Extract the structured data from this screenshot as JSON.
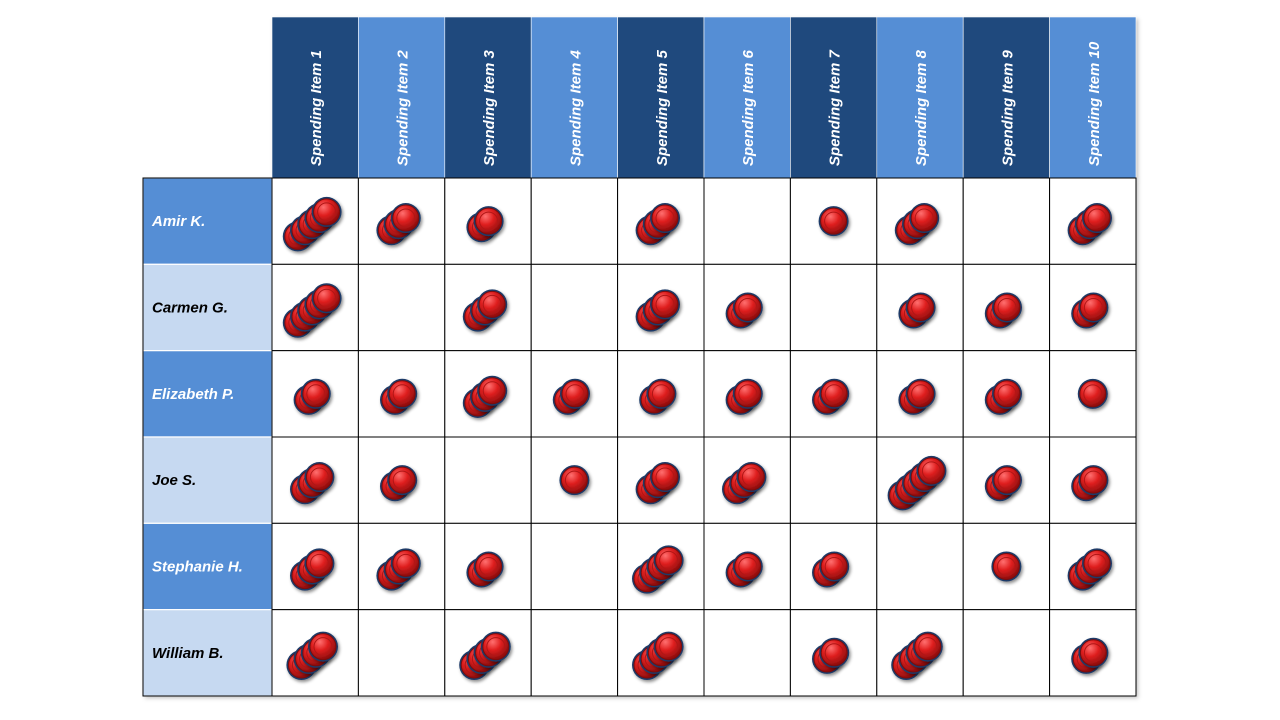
{
  "chart_data": {
    "type": "table",
    "title": "",
    "columns": [
      "Spending Item 1",
      "Spending Item 2",
      "Spending Item 3",
      "Spending Item 4",
      "Spending Item 5",
      "Spending Item 6",
      "Spending Item 7",
      "Spending Item 8",
      "Spending Item 9",
      "Spending Item 10"
    ],
    "rows": [
      "Amir K.",
      "Carmen G.",
      "Elizabeth P.",
      "Joe S.",
      "Stephanie H.",
      "William B."
    ],
    "values": [
      [
        5,
        3,
        2,
        0,
        3,
        0,
        1,
        3,
        0,
        3
      ],
      [
        5,
        0,
        3,
        0,
        3,
        2,
        0,
        2,
        2,
        2
      ],
      [
        2,
        2,
        3,
        2,
        2,
        2,
        2,
        2,
        2,
        1
      ],
      [
        3,
        2,
        0,
        1,
        3,
        3,
        0,
        5,
        2,
        2
      ],
      [
        3,
        3,
        2,
        0,
        4,
        2,
        2,
        0,
        1,
        3
      ],
      [
        4,
        0,
        4,
        0,
        4,
        0,
        2,
        4,
        0,
        2
      ]
    ],
    "colors": {
      "header_dark": "#1F497D",
      "header_light": "#558ED5",
      "row_dark": "#558ED5",
      "row_light": "#C6D9F1",
      "token_fill": "#E02020",
      "token_edge": "#7A0A0A",
      "token_stack_outline": "#1F3A68"
    },
    "token_icon": "red-circle-token"
  }
}
